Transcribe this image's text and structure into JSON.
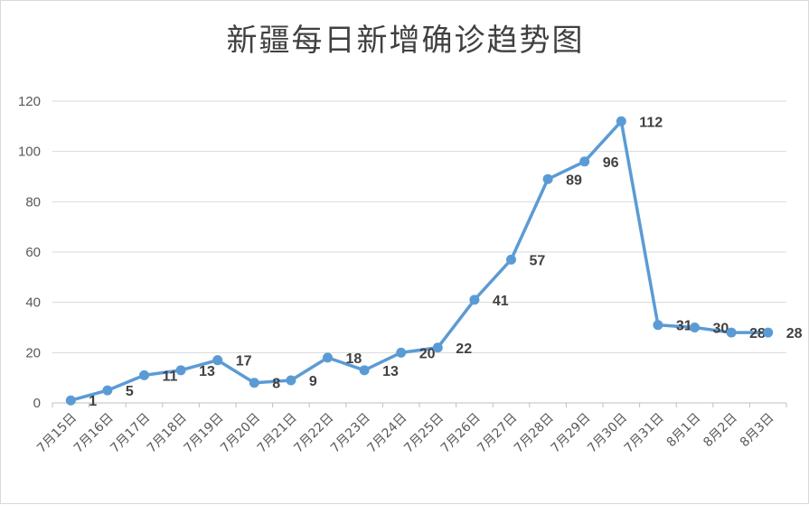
{
  "chart_data": {
    "type": "line",
    "title": "新疆每日新增确诊趋势图",
    "xlabel": "",
    "ylabel": "",
    "categories": [
      "7月15日",
      "7月16日",
      "7月17日",
      "7月18日",
      "7月19日",
      "7月20日",
      "7月21日",
      "7月22日",
      "7月23日",
      "7月24日",
      "7月25日",
      "7月26日",
      "7月27日",
      "7月28日",
      "7月29日",
      "7月30日",
      "7月31日",
      "8月1日",
      "8月2日",
      "8月3日"
    ],
    "series": [
      {
        "values": [
          1,
          5,
          11,
          13,
          17,
          8,
          9,
          18,
          13,
          20,
          22,
          41,
          57,
          89,
          96,
          112,
          31,
          30,
          28,
          28
        ]
      }
    ],
    "ylim": [
      0,
      120
    ],
    "yticks": [
      0,
      20,
      40,
      60,
      80,
      100,
      120
    ],
    "grid": true,
    "legend": "none",
    "line_color": "#5b9bd5"
  }
}
